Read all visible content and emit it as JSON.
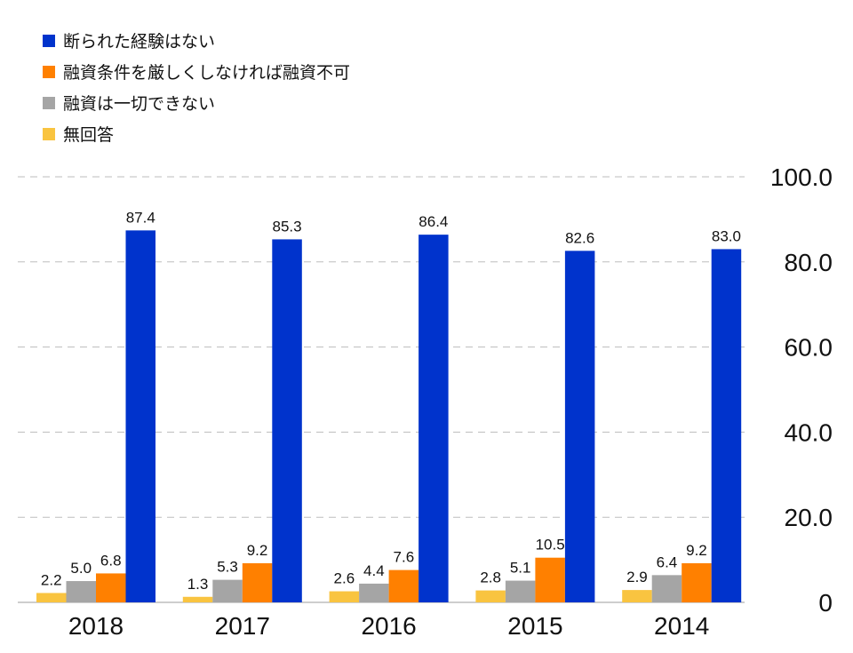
{
  "chart_data": {
    "type": "bar",
    "categories": [
      "2018",
      "2017",
      "2016",
      "2015",
      "2014"
    ],
    "series": [
      {
        "name": "無回答",
        "color": "#f9c440",
        "values": [
          2.2,
          1.3,
          2.6,
          2.8,
          2.9
        ]
      },
      {
        "name": "融資は一切できない",
        "color": "#a5a5a5",
        "values": [
          5.0,
          5.3,
          4.4,
          5.1,
          6.4
        ]
      },
      {
        "name": "融資条件を厳しくしなければ融資不可",
        "color": "#ff8000",
        "values": [
          6.8,
          9.2,
          7.6,
          10.5,
          9.2
        ]
      },
      {
        "name": "断られた経験はない",
        "color": "#0033cc",
        "values": [
          87.4,
          85.3,
          86.4,
          82.6,
          83.0
        ]
      }
    ],
    "legend_order": [
      3,
      2,
      1,
      0
    ],
    "yticks": [
      "0",
      "20.0",
      "40.0",
      "60.0",
      "80.0",
      "100.0"
    ],
    "ylim": [
      0,
      100
    ],
    "grid": true,
    "legend_position": "top-left",
    "yaxis_position": "right"
  }
}
